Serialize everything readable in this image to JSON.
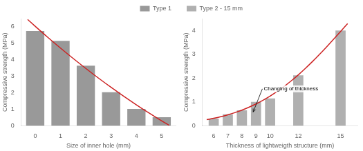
{
  "chart_data": [
    {
      "type": "bar",
      "x": [
        0,
        1,
        2,
        3,
        4,
        5
      ],
      "xlabel": "Size of inner hole (mm)",
      "ylabel": "Compressive strength (MPa)",
      "xlim": [
        -0.55,
        5.55
      ],
      "xticks": [
        0,
        1,
        2,
        3,
        4,
        5
      ],
      "ylim": [
        0,
        6.5
      ],
      "yticks": [
        0,
        1,
        2,
        3,
        4,
        5,
        6
      ],
      "grid": false,
      "legend": "upper right",
      "series": [
        {
          "name": "Type 1",
          "type": "bar",
          "color": "#999999",
          "values": [
            5.75,
            5.15,
            3.65,
            2.03,
            1.02,
            0.52
          ]
        },
        {
          "type": "line",
          "color": "#cc2222",
          "x": [
            -0.3,
            0,
            0.5,
            1,
            1.5,
            2,
            2.5,
            3,
            3.5,
            4,
            4.5,
            5,
            5.3
          ],
          "values": [
            6.449,
            6.035,
            5.362,
            4.712,
            4.083,
            3.477,
            2.892,
            2.329,
            1.788,
            1.27,
            0.773,
            0.298,
            0.023
          ]
        }
      ]
    },
    {
      "type": "bar",
      "x": [
        6,
        7,
        8,
        9,
        10,
        12,
        15
      ],
      "xlabel": "Thickness of lightweigth structure (mm)",
      "ylabel": "Compressive strength (MPa)",
      "xlim": [
        5.2,
        16.2
      ],
      "xticks": [
        6,
        7,
        8,
        9,
        10,
        12,
        15
      ],
      "ylim": [
        0,
        4.5
      ],
      "yticks": [
        0,
        1,
        2,
        3,
        4
      ],
      "grid": false,
      "legend": "upper left",
      "annotations": [
        {
          "text": "Changing of thickness",
          "x": 9.5,
          "y": 1.55,
          "arrow_to": [
            8.8,
            0.58
          ]
        }
      ],
      "series": [
        {
          "name": "Type 2 - 15 mm",
          "type": "bar",
          "color": "#b0b0b0",
          "values": [
            0.3,
            0.48,
            0.65,
            1.0,
            1.15,
            2.12,
            4.0
          ]
        },
        {
          "type": "line",
          "color": "#cc2222",
          "x": [
            5.5,
            6,
            6.5,
            7,
            7.5,
            8,
            8.5,
            9,
            9.5,
            10,
            10.5,
            11,
            11.5,
            12,
            12.5,
            13,
            13.5,
            14,
            14.5,
            15,
            15.5
          ],
          "values": [
            0.256,
            0.313,
            0.38,
            0.459,
            0.551,
            0.657,
            0.779,
            0.917,
            1.073,
            1.247,
            1.441,
            1.654,
            1.886,
            2.137,
            2.407,
            2.693,
            2.994,
            3.308,
            3.631,
            3.96,
            4.292
          ]
        }
      ]
    }
  ]
}
